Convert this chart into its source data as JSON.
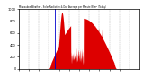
{
  "title": "Milwaukee Weather - Solar Radiation & Day Average per Minute W/m² (Today)",
  "background_color": "#ffffff",
  "plot_bg_color": "#ffffff",
  "grid_color": "#aaaaaa",
  "bar_color": "#dd0000",
  "avg_line_color": "#0000cc",
  "ylim": [
    0,
    1000
  ],
  "ytick_values": [
    0,
    200,
    400,
    600,
    800,
    1000
  ],
  "num_points": 1440,
  "avg_minute": 430
}
